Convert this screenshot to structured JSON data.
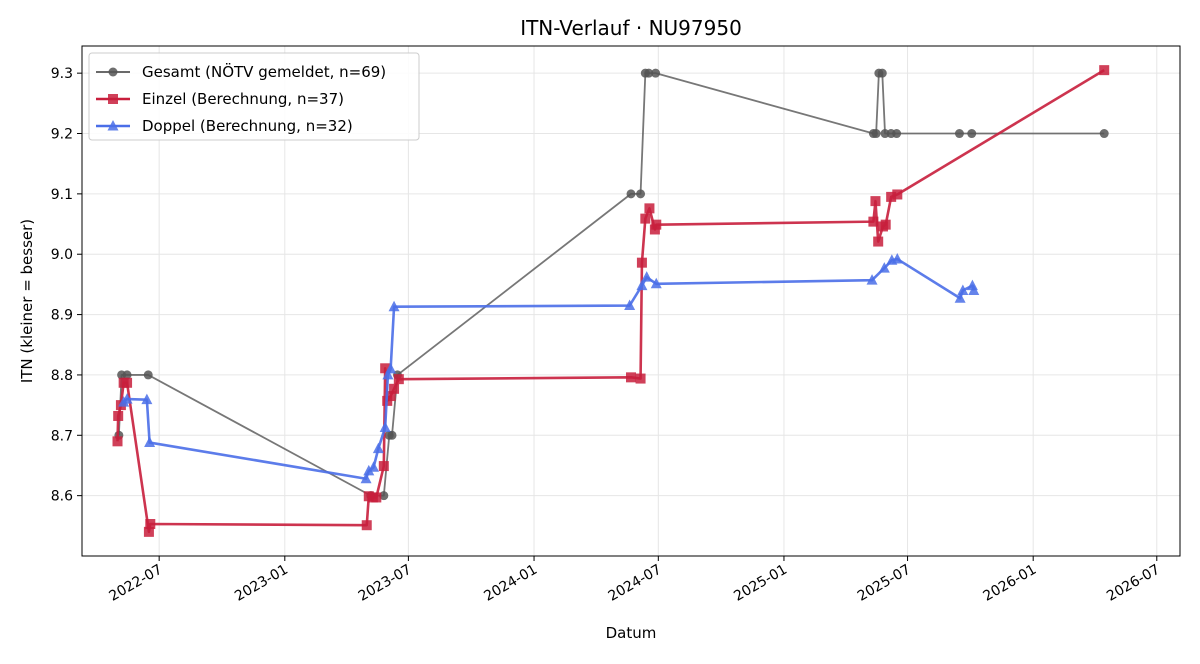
{
  "chart_data": {
    "type": "line",
    "title": "ITN-Verlauf · NU97950",
    "xlabel": "Datum",
    "ylabel": "ITN  (kleiner = besser)",
    "x_scale": "date",
    "xlim": [
      "2022-03-10",
      "2026-08-04"
    ],
    "ylim": [
      8.5,
      9.345
    ],
    "x_ticks": [
      "2022-07-01",
      "2023-01-01",
      "2023-07-01",
      "2024-01-01",
      "2024-07-01",
      "2025-01-01",
      "2025-07-01",
      "2026-01-01",
      "2026-07-01"
    ],
    "x_tick_labels": [
      "2022-07",
      "2023-01",
      "2023-07",
      "2024-01",
      "2024-07",
      "2025-01",
      "2025-07",
      "2026-01",
      "2026-07"
    ],
    "y_ticks": [
      8.6,
      8.7,
      8.8,
      8.9,
      9.0,
      9.1,
      9.2,
      9.3
    ],
    "y_tick_labels": [
      "8.6",
      "8.7",
      "8.8",
      "8.9",
      "9.0",
      "9.1",
      "9.2",
      "9.3"
    ],
    "grid": true,
    "legend_position": "top-left",
    "series": [
      {
        "name": "Gesamt (NÖTV gemeldet, n=69)",
        "color": "#555555",
        "marker": "circle",
        "points": [
          {
            "x": "2022-05-03",
            "y": 8.7
          },
          {
            "x": "2022-05-07",
            "y": 8.8
          },
          {
            "x": "2022-05-15",
            "y": 8.8
          },
          {
            "x": "2022-06-15",
            "y": 8.8
          },
          {
            "x": "2023-05-07",
            "y": 8.6
          },
          {
            "x": "2023-05-26",
            "y": 8.6
          },
          {
            "x": "2023-06-03",
            "y": 8.7
          },
          {
            "x": "2023-06-07",
            "y": 8.7
          },
          {
            "x": "2023-06-15",
            "y": 8.8
          },
          {
            "x": "2024-05-22",
            "y": 9.1
          },
          {
            "x": "2024-06-05",
            "y": 9.1
          },
          {
            "x": "2024-06-12",
            "y": 9.3
          },
          {
            "x": "2024-06-17",
            "y": 9.3
          },
          {
            "x": "2024-06-27",
            "y": 9.3
          },
          {
            "x": "2025-05-12",
            "y": 9.2
          },
          {
            "x": "2025-05-16",
            "y": 9.2
          },
          {
            "x": "2025-05-20",
            "y": 9.3
          },
          {
            "x": "2025-05-25",
            "y": 9.3
          },
          {
            "x": "2025-05-29",
            "y": 9.2
          },
          {
            "x": "2025-06-07",
            "y": 9.2
          },
          {
            "x": "2025-06-15",
            "y": 9.2
          },
          {
            "x": "2025-09-15",
            "y": 9.2
          },
          {
            "x": "2025-10-03",
            "y": 9.2
          },
          {
            "x": "2026-04-15",
            "y": 9.2
          }
        ]
      },
      {
        "name": "Einzel (Berechnung, n=37)",
        "color": "#c81e3c",
        "marker": "square",
        "points": [
          {
            "x": "2022-05-01",
            "y": 8.69
          },
          {
            "x": "2022-05-02",
            "y": 8.732
          },
          {
            "x": "2022-05-06",
            "y": 8.75
          },
          {
            "x": "2022-05-10",
            "y": 8.787
          },
          {
            "x": "2022-05-15",
            "y": 8.787
          },
          {
            "x": "2022-06-16",
            "y": 8.54
          },
          {
            "x": "2022-06-18",
            "y": 8.553
          },
          {
            "x": "2023-05-01",
            "y": 8.551
          },
          {
            "x": "2023-05-04",
            "y": 8.599
          },
          {
            "x": "2023-05-10",
            "y": 8.597
          },
          {
            "x": "2023-05-15",
            "y": 8.597
          },
          {
            "x": "2023-05-26",
            "y": 8.649
          },
          {
            "x": "2023-05-28",
            "y": 8.811
          },
          {
            "x": "2023-05-31",
            "y": 8.757
          },
          {
            "x": "2023-06-05",
            "y": 8.765
          },
          {
            "x": "2023-06-10",
            "y": 8.777
          },
          {
            "x": "2023-06-17",
            "y": 8.793
          },
          {
            "x": "2024-05-22",
            "y": 8.796
          },
          {
            "x": "2024-06-05",
            "y": 8.794
          },
          {
            "x": "2024-06-07",
            "y": 8.986
          },
          {
            "x": "2024-06-12",
            "y": 9.059
          },
          {
            "x": "2024-06-18",
            "y": 9.076
          },
          {
            "x": "2024-06-26",
            "y": 9.041
          },
          {
            "x": "2024-06-28",
            "y": 9.049
          },
          {
            "x": "2025-05-12",
            "y": 9.054
          },
          {
            "x": "2025-05-15",
            "y": 9.088
          },
          {
            "x": "2025-05-19",
            "y": 9.021
          },
          {
            "x": "2025-05-26",
            "y": 9.046
          },
          {
            "x": "2025-05-30",
            "y": 9.049
          },
          {
            "x": "2025-06-07",
            "y": 9.095
          },
          {
            "x": "2025-06-16",
            "y": 9.099
          },
          {
            "x": "2026-04-15",
            "y": 9.305
          }
        ]
      },
      {
        "name": "Doppel (Berechnung, n=32)",
        "color": "#4a6ee8",
        "marker": "triangle",
        "points": [
          {
            "x": "2022-05-10",
            "y": 8.755
          },
          {
            "x": "2022-05-15",
            "y": 8.76
          },
          {
            "x": "2022-06-13",
            "y": 8.759
          },
          {
            "x": "2022-06-17",
            "y": 8.688
          },
          {
            "x": "2023-04-30",
            "y": 8.628
          },
          {
            "x": "2023-05-04",
            "y": 8.641
          },
          {
            "x": "2023-05-11",
            "y": 8.647
          },
          {
            "x": "2023-05-18",
            "y": 8.678
          },
          {
            "x": "2023-05-28",
            "y": 8.713
          },
          {
            "x": "2023-06-01",
            "y": 8.8
          },
          {
            "x": "2023-06-05",
            "y": 8.81
          },
          {
            "x": "2023-06-10",
            "y": 8.913
          },
          {
            "x": "2024-05-20",
            "y": 8.915
          },
          {
            "x": "2024-06-07",
            "y": 8.948
          },
          {
            "x": "2024-06-14",
            "y": 8.962
          },
          {
            "x": "2024-06-28",
            "y": 8.951
          },
          {
            "x": "2025-05-10",
            "y": 8.957
          },
          {
            "x": "2025-05-28",
            "y": 8.977
          },
          {
            "x": "2025-06-08",
            "y": 8.99
          },
          {
            "x": "2025-06-16",
            "y": 8.992
          },
          {
            "x": "2025-09-16",
            "y": 8.927
          },
          {
            "x": "2025-09-20",
            "y": 8.94
          },
          {
            "x": "2025-10-04",
            "y": 8.948
          },
          {
            "x": "2025-10-06",
            "y": 8.94
          }
        ]
      }
    ]
  }
}
